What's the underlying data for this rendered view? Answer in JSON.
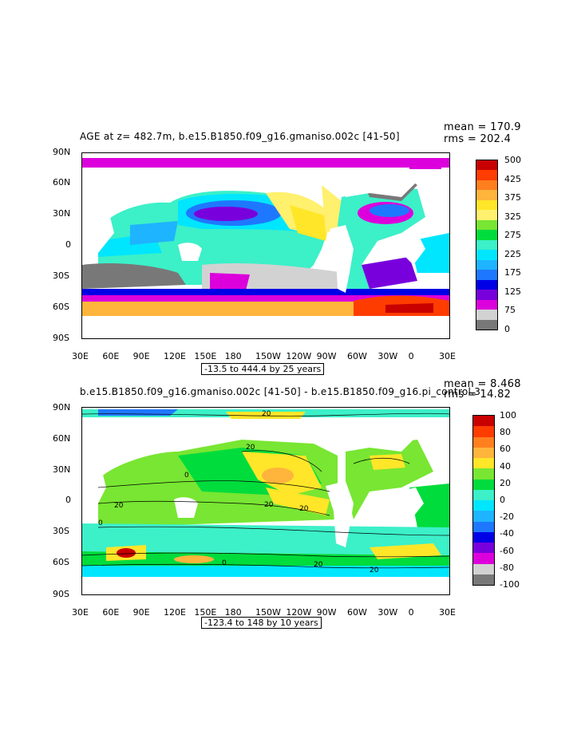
{
  "panel1": {
    "title": "AGE at z= 482.7m, b.e15.B1850.f09_g16.gmaniso.002c [41-50]",
    "mean": "mean = 170.9",
    "rms": "rms = 202.4",
    "range": "-13.5 to 444.4 by 25 years",
    "colorbar_labels": [
      "500",
      "425",
      "375",
      "325",
      "275",
      "225",
      "175",
      "125",
      "75",
      "0"
    ],
    "colorbar_colors": [
      "#c80000",
      "#ff3c00",
      "#ff7f1e",
      "#ffb43c",
      "#ffe628",
      "#fff06e",
      "#78e632",
      "#00dc3c",
      "#3cf0c8",
      "#00e6ff",
      "#1eb4ff",
      "#1e78ff",
      "#0000e6",
      "#7800dc",
      "#dc00dc",
      "#d2d2d2",
      "#787878"
    ]
  },
  "panel2": {
    "title": "b.e15.B1850.f09_g16.gmaniso.002c [41-50] - b.e15.B1850.f09_g16.pi_control.3",
    "mean": "mean = 8.468",
    "rms": "rms = 14.82",
    "range": "-123.4 to 148 by 10 years",
    "colorbar_labels": [
      "100",
      "80",
      "60",
      "40",
      "20",
      "0",
      "-20",
      "-40",
      "-60",
      "-80",
      "-100"
    ],
    "colorbar_colors": [
      "#c80000",
      "#ff3c00",
      "#ff7f1e",
      "#ffb43c",
      "#ffe628",
      "#78e632",
      "#00dc3c",
      "#3cf0c8",
      "#00e6ff",
      "#1eb4ff",
      "#1e78ff",
      "#0000e6",
      "#7800dc",
      "#dc00dc",
      "#d2d2d2",
      "#787878"
    ]
  },
  "lat_labels": [
    "90N",
    "60N",
    "30N",
    "0",
    "30S",
    "60S",
    "90S"
  ],
  "lon_labels": [
    "30E",
    "60E",
    "90E",
    "120E",
    "150E",
    "180",
    "150W",
    "120W",
    "90W",
    "60W",
    "30W",
    "0",
    "30E"
  ],
  "contour_labels": [
    "20",
    "20",
    "0",
    "20",
    "20",
    "20",
    "0",
    "20",
    "20",
    "0"
  ]
}
